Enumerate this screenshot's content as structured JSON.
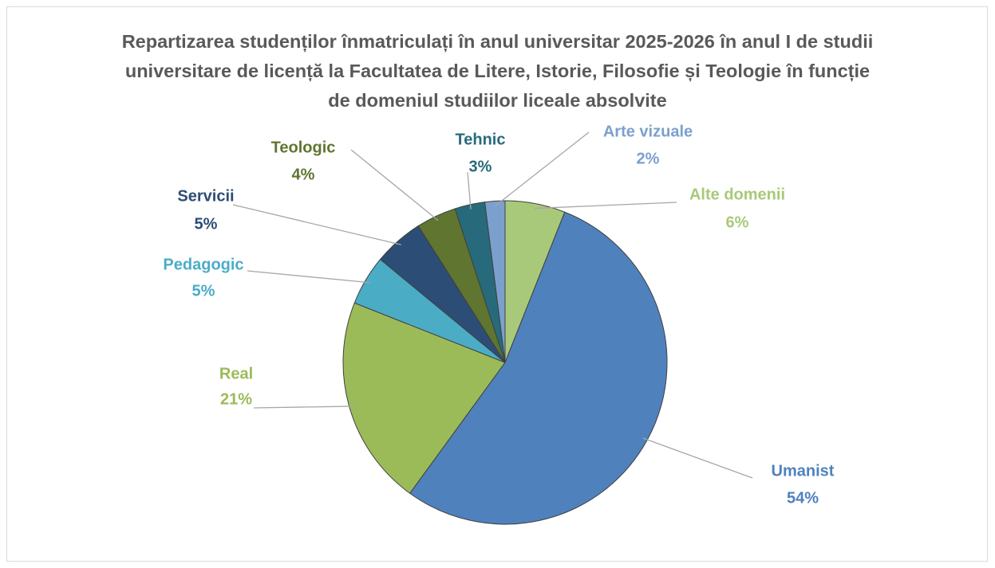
{
  "chart_data": {
    "type": "pie",
    "title": "Repartizarea studenților înmatriculați în anul universitar 2025-2026 în anul I de studii universitare de licență la Facultatea de Litere, Istorie, Filosofie și Teologie în funcție de domeniul studiilor liceale absolvite",
    "categories": [
      "Alte domenii",
      "Umanist",
      "Real",
      "Pedagogic",
      "Servicii",
      "Teologic",
      "Tehnic",
      "Arte vizuale"
    ],
    "values": [
      6,
      54,
      21,
      5,
      5,
      4,
      3,
      2
    ],
    "value_labels": [
      "6%",
      "54%",
      "21%",
      "5%",
      "5%",
      "4%",
      "3%",
      "2%"
    ],
    "colors": [
      "#a9c97a",
      "#4f81bd",
      "#9bbb59",
      "#4bacc6",
      "#2c4d75",
      "#5f7530",
      "#276a7c",
      "#7ba0cd"
    ]
  }
}
